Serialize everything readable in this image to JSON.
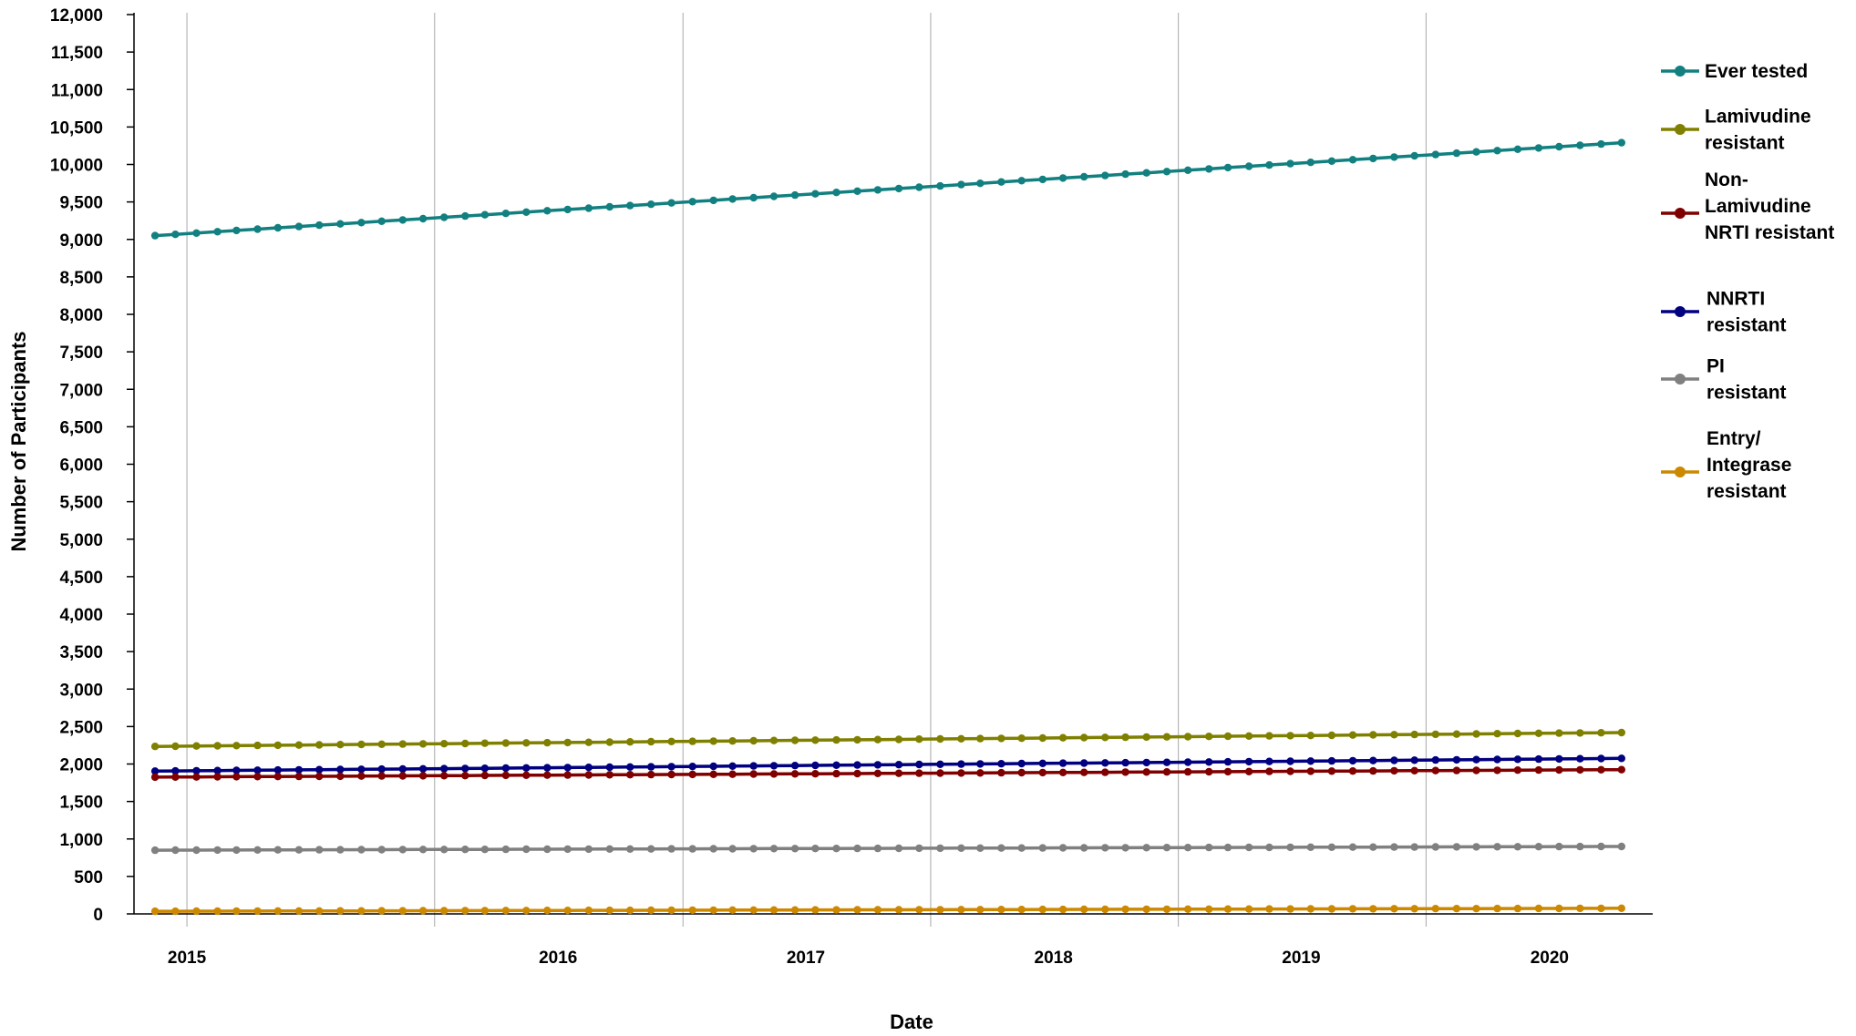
{
  "chart_data": {
    "type": "line",
    "title": "",
    "xlabel": "Date",
    "ylabel": "Number of Participants",
    "ylim": [
      0,
      12000
    ],
    "y_ticks": [
      0,
      500,
      1000,
      1500,
      2000,
      2500,
      3000,
      3500,
      4000,
      4500,
      5000,
      5500,
      6000,
      6500,
      7000,
      7500,
      8000,
      8500,
      9000,
      9500,
      10000,
      10500,
      11000,
      11500,
      12000
    ],
    "y_tick_labels": [
      "0",
      "500",
      "1,000",
      "1,500",
      "2,000",
      "2,500",
      "3,000",
      "3,500",
      "4,000",
      "4,500",
      "5,000",
      "5,500",
      "6,000",
      "6,500",
      "7,000",
      "7,500",
      "8,000",
      "8,500",
      "9,000",
      "9,500",
      "10,000",
      "10,500",
      "11,000",
      "11,500",
      "12,000"
    ],
    "x_range": [
      "2014-10-15",
      "2020-11-30"
    ],
    "x_year_boundaries": [
      "2015-01-01",
      "2016-01-01",
      "2017-01-01",
      "2018-01-01",
      "2019-01-01",
      "2020-01-01"
    ],
    "x_tick_labels": [
      {
        "label": "2015",
        "date": "2015-01-01"
      },
      {
        "label": "2016",
        "date": "2016-07-01"
      },
      {
        "label": "2017",
        "date": "2017-07-01"
      },
      {
        "label": "2018",
        "date": "2018-07-01"
      },
      {
        "label": "2019",
        "date": "2019-07-01"
      },
      {
        "label": "2020",
        "date": "2020-07-01"
      }
    ],
    "x_start": "2014-11",
    "x_end": "2020-10",
    "grid": "vertical lines at year boundaries",
    "legend_position": "right",
    "series": [
      {
        "name": "Ever tested",
        "color": "#128080",
        "start": 9050,
        "end": 10290
      },
      {
        "name": "Lamivudine resistant",
        "color": "#808000",
        "start": 2235,
        "end": 2420
      },
      {
        "name": "Non-Lamivudine NRTI resistant",
        "color": "#800000",
        "start": 1825,
        "end": 1925
      },
      {
        "name": "NNRTI resistant",
        "color": "#000080",
        "start": 1905,
        "end": 2075
      },
      {
        "name": "PI resistant",
        "color": "#808080",
        "start": 850,
        "end": 900
      },
      {
        "name": "Entry/ Integrase resistant",
        "color": "#cc8800",
        "start": 35,
        "end": 75
      }
    ]
  },
  "legend": [
    {
      "lines": [
        "Ever tested"
      ]
    },
    {
      "lines": [
        "Lamivudine",
        "resistant"
      ]
    },
    {
      "lines": [
        "Non-",
        "Lamivudine",
        "NRTI resistant"
      ]
    },
    {
      "lines": [
        "NNRTI",
        "resistant"
      ]
    },
    {
      "lines": [
        "PI",
        "resistant"
      ]
    },
    {
      "lines": [
        "Entry/",
        "Integrase",
        "resistant"
      ]
    }
  ]
}
